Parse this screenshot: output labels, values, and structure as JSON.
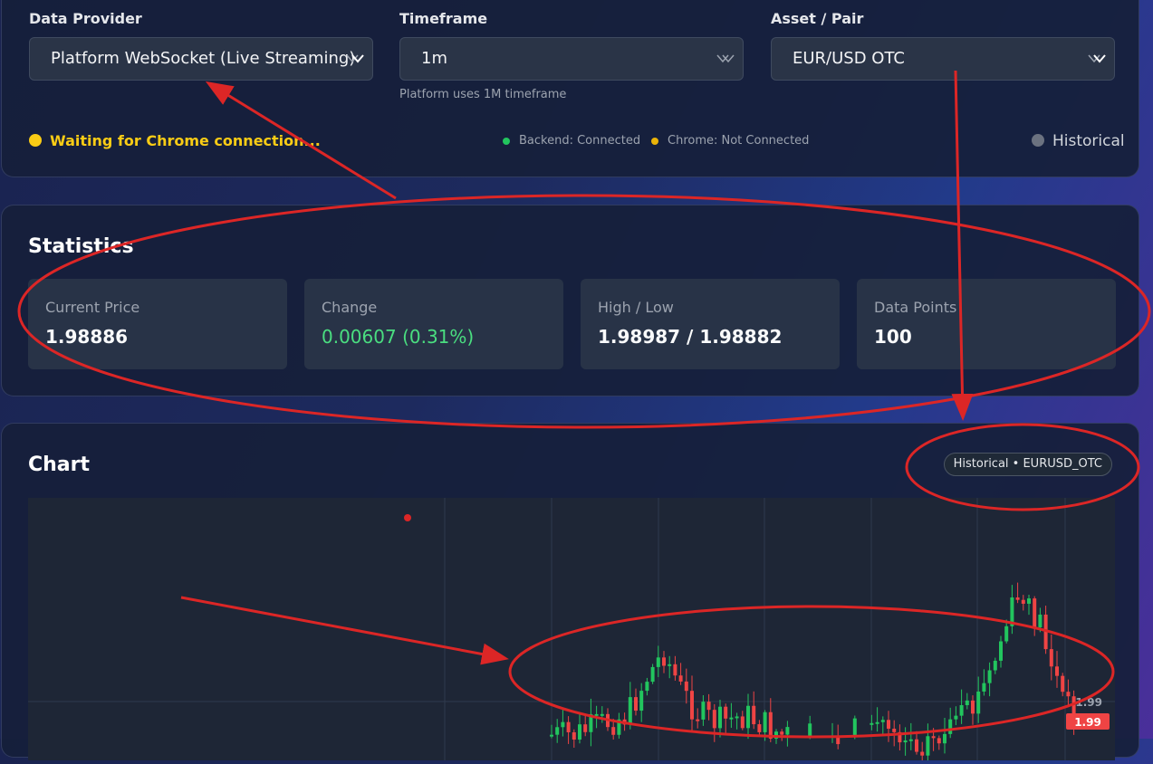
{
  "controls": {
    "provider": {
      "label": "Data Provider",
      "value": "Platform WebSocket (Live Streaming)"
    },
    "timeframe": {
      "label": "Timeframe",
      "value": "1m",
      "hint": "Platform uses 1M timeframe"
    },
    "asset": {
      "label": "Asset / Pair",
      "value": "EUR/USD OTC"
    },
    "status": {
      "main": "Waiting for Chrome connection...",
      "backend": "Backend: Connected",
      "chrome": "Chrome: Not Connected",
      "mode": "Historical"
    }
  },
  "statistics": {
    "title": "Statistics",
    "cards": [
      {
        "label": "Current Price",
        "value": "1.98886"
      },
      {
        "label": "Change",
        "value": "0.00607 (0.31%)"
      },
      {
        "label": "High / Low",
        "value": "1.98987 / 1.98882"
      },
      {
        "label": "Data Points",
        "value": "100"
      }
    ]
  },
  "chart": {
    "title": "Chart",
    "badge": "Historical • EURUSD_OTC",
    "axis_label": "1.99",
    "price_tag": "1.99"
  },
  "colors": {
    "up": "#22c55e",
    "down": "#ef4444",
    "warning": "#facc15",
    "annotation": "#dc2626"
  }
}
